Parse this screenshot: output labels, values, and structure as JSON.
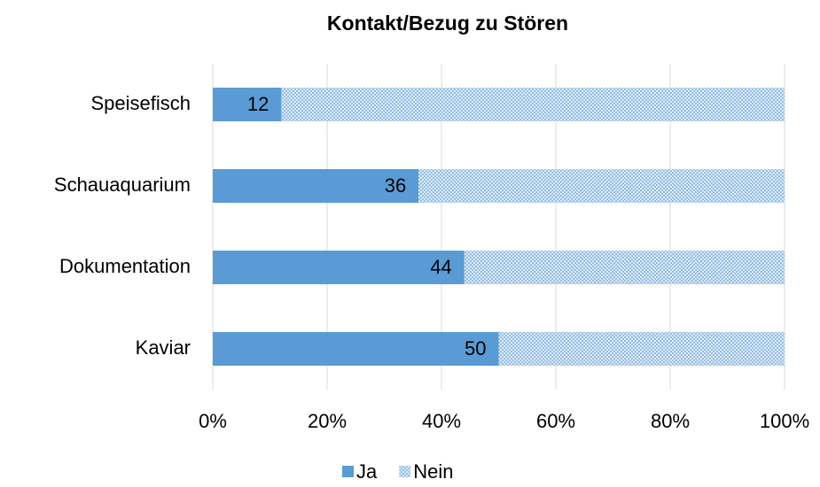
{
  "chart_data": {
    "type": "stacked_barh",
    "title": "Kontakt/Bezug zu Stören",
    "categories": [
      "Speisefisch",
      "Schauaquarium",
      "Dokumentation",
      "Kaviar"
    ],
    "series": [
      {
        "name": "Ja",
        "color": "#5b9bd5",
        "values": [
          12,
          36,
          44,
          50
        ],
        "value_labels": [
          "12",
          "36",
          "44",
          "50"
        ]
      },
      {
        "name": "Nein",
        "color": "#5b9bd5",
        "pattern": "dotted",
        "values": [
          88,
          64,
          56,
          50
        ]
      }
    ],
    "xlim": [
      0,
      100
    ],
    "xticks": [
      {
        "value": 0,
        "label": "0%"
      },
      {
        "value": 20,
        "label": "20%"
      },
      {
        "value": 40,
        "label": "40%"
      },
      {
        "value": 60,
        "label": "60%"
      },
      {
        "value": 80,
        "label": "80%"
      },
      {
        "value": 100,
        "label": "100%"
      }
    ],
    "grid": true,
    "legend": "bottom"
  }
}
